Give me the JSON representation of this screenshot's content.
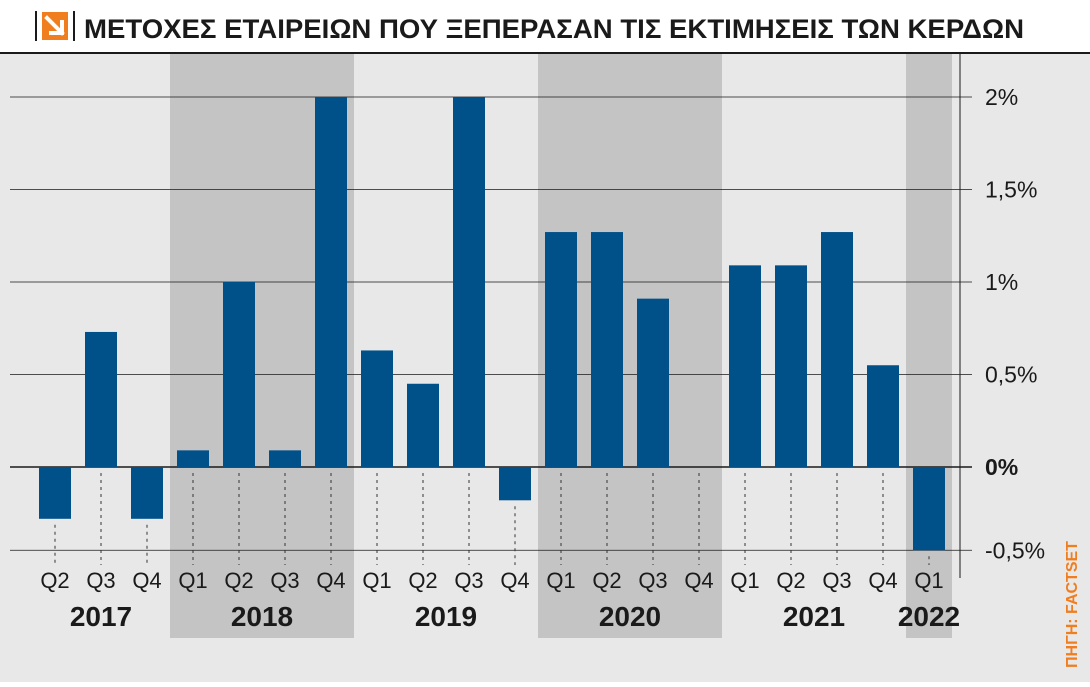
{
  "title": "ΜΕΤΟΧΕΣ ΕΤΑΙΡΕΙΩΝ ΠΟΥ ΞΕΠΕΡΑΣΑΝ ΤΙΣ ΕΚΤΙΜΗΣΕΙΣ ΤΩΝ ΚΕΡΔΩΝ",
  "source": "ΠΗΓΗ: FACTSET",
  "colors": {
    "bar": "#00508a",
    "background": "#e8e8e8",
    "band_shaded": "#c4c4c4",
    "accent": "#f07d1e",
    "text": "#1a1a1a"
  },
  "chart_data": {
    "type": "bar",
    "title": "ΜΕΤΟΧΕΣ ΕΤΑΙΡΕΙΩΝ ΠΟΥ ΞΕΠΕΡΑΣΑΝ ΤΙΣ ΕΚΤΙΜΗΣΕΙΣ ΤΩΝ ΚΕΡΔΩΝ",
    "xlabel": "",
    "ylabel": "",
    "categories": [
      "Q2",
      "Q3",
      "Q4",
      "Q1",
      "Q2",
      "Q3",
      "Q4",
      "Q1",
      "Q2",
      "Q3",
      "Q4",
      "Q1",
      "Q2",
      "Q3",
      "Q4",
      "Q1",
      "Q2",
      "Q3",
      "Q4",
      "Q1"
    ],
    "values": [
      -0.28,
      0.73,
      -0.28,
      0.09,
      1.0,
      0.09,
      2.0,
      0.63,
      0.45,
      2.0,
      -0.18,
      1.27,
      1.27,
      0.91,
      0.0,
      1.09,
      1.09,
      1.27,
      0.55,
      -0.45
    ],
    "year_groups": [
      {
        "year": "2017",
        "count": 3,
        "shaded": false
      },
      {
        "year": "2018",
        "count": 4,
        "shaded": true
      },
      {
        "year": "2019",
        "count": 4,
        "shaded": false
      },
      {
        "year": "2020",
        "count": 4,
        "shaded": true
      },
      {
        "year": "2021",
        "count": 4,
        "shaded": false
      },
      {
        "year": "2022",
        "count": 1,
        "shaded": true
      }
    ],
    "ylim": [
      -0.45,
      2.0
    ],
    "yticks": [
      {
        "value": 2.0,
        "label": "2%"
      },
      {
        "value": 1.5,
        "label": "1,5%"
      },
      {
        "value": 1.0,
        "label": "1%"
      },
      {
        "value": 0.5,
        "label": "0,5%"
      },
      {
        "value": 0.0,
        "label": "0%"
      },
      {
        "value": -0.45,
        "label": "-0,5%"
      }
    ],
    "axis_position": "right",
    "grid": true
  }
}
